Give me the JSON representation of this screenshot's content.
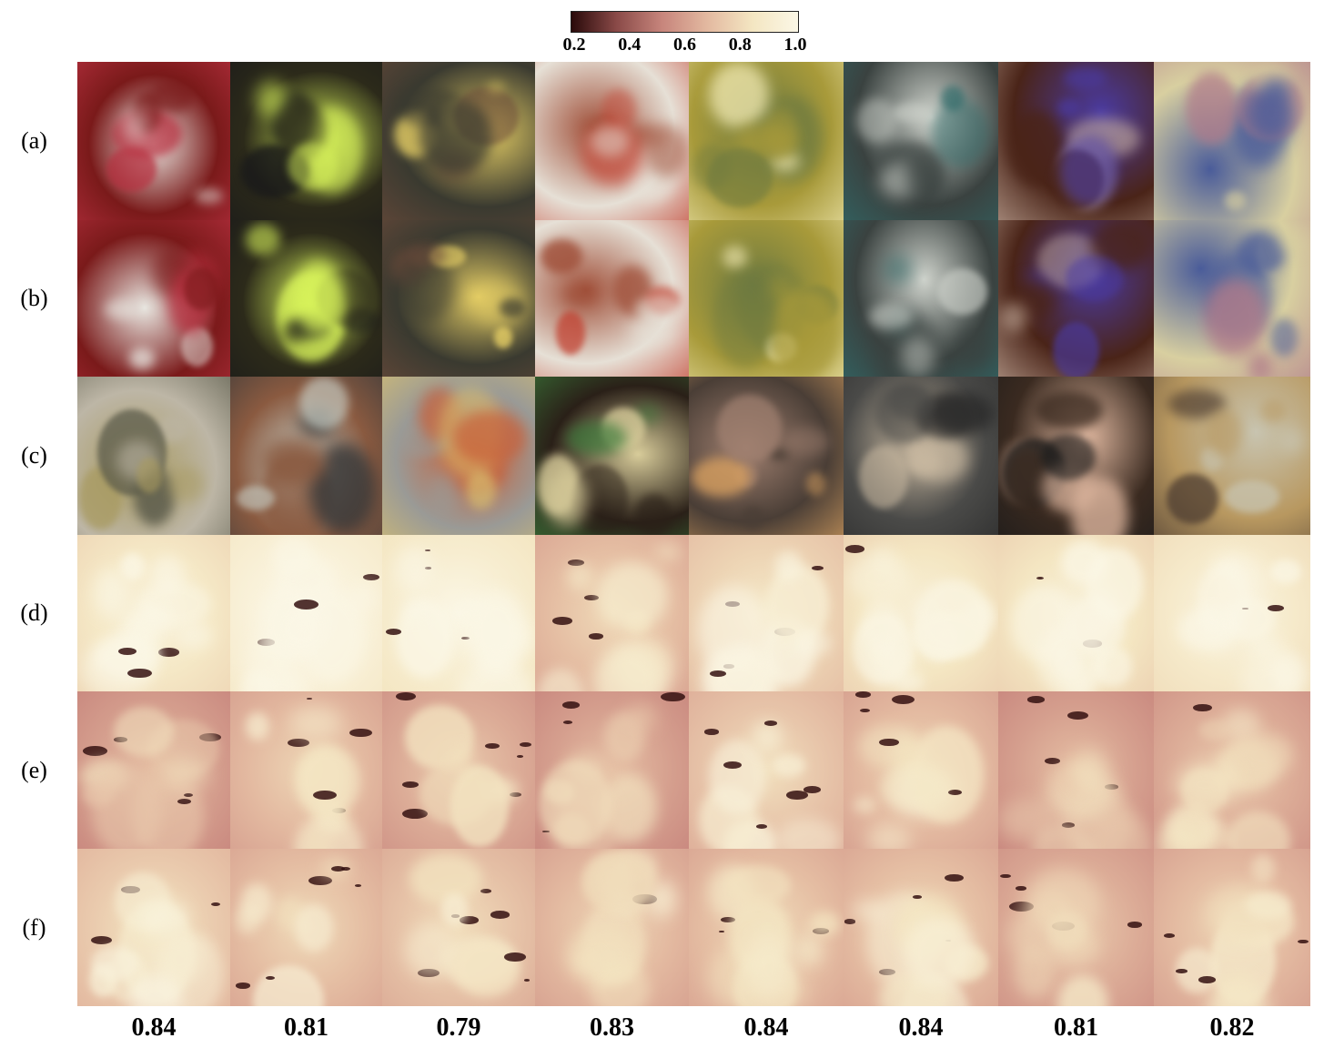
{
  "colorbar": {
    "gradient_colors": [
      "#2a0a0a",
      "#8a4a48",
      "#c7857c",
      "#e3b9a0",
      "#f4e6c2",
      "#fbf7e6"
    ],
    "ticks": [
      "0.2",
      "0.4",
      "0.6",
      "0.8",
      "1.0"
    ]
  },
  "row_labels": [
    "(a)",
    "(b)",
    "(c)",
    "(d)",
    "(e)",
    "(f)"
  ],
  "rows": [
    {
      "label": "(a)",
      "kind": "photo",
      "tiles": [
        {
          "base": "#7a1a1a",
          "accent": "#e8e6e0",
          "detail": "#b83040"
        },
        {
          "base": "#2c2a1a",
          "accent": "#d7f25a",
          "detail": "#1a1a1a"
        },
        {
          "base": "#3a3a30",
          "accent": "#e3cc64",
          "detail": "#6b4a3a"
        },
        {
          "base": "#e6e0d6",
          "accent": "#a0503a",
          "detail": "#c24030"
        },
        {
          "base": "#a89a3a",
          "accent": "#6e7a40",
          "detail": "#f0e8b0"
        },
        {
          "base": "#3a4240",
          "accent": "#cfd3cc",
          "detail": "#2f6b6a"
        },
        {
          "base": "#4a2418",
          "accent": "#4a3aa0",
          "detail": "#c8b0a0"
        },
        {
          "base": "#d8cfa0",
          "accent": "#4a5c9a",
          "detail": "#b07a8a"
        }
      ]
    },
    {
      "label": "(b)",
      "kind": "photo",
      "tiles": [
        {
          "base": "#7a1a1a",
          "accent": "#e8e6e0",
          "detail": "#b83040"
        },
        {
          "base": "#2c2a1a",
          "accent": "#d7f25a",
          "detail": "#1a1a1a"
        },
        {
          "base": "#3a3a30",
          "accent": "#e3cc64",
          "detail": "#6b4a3a"
        },
        {
          "base": "#e6e0d6",
          "accent": "#a0503a",
          "detail": "#c24030"
        },
        {
          "base": "#a89a3a",
          "accent": "#6e7a40",
          "detail": "#f0e8b0"
        },
        {
          "base": "#3a4240",
          "accent": "#cfd3cc",
          "detail": "#2f6b6a"
        },
        {
          "base": "#4a2418",
          "accent": "#4a3aa0",
          "detail": "#c8b0a0"
        },
        {
          "base": "#d8cfa0",
          "accent": "#4a5c9a",
          "detail": "#b07a8a"
        }
      ]
    },
    {
      "label": "(c)",
      "kind": "photo",
      "tiles": [
        {
          "base": "#bdb6a6",
          "accent": "#a89a60",
          "detail": "#5a5a4a"
        },
        {
          "base": "#8a5a40",
          "accent": "#c8d0c8",
          "detail": "#3a3a3a"
        },
        {
          "base": "#9a9a96",
          "accent": "#c8603a",
          "detail": "#d8c070"
        },
        {
          "base": "#2a2018",
          "accent": "#d8cc9a",
          "detail": "#3a7a3a"
        },
        {
          "base": "#4a3e36",
          "accent": "#a08070",
          "detail": "#d8a060"
        },
        {
          "base": "#4a4a48",
          "accent": "#c8b8a0",
          "detail": "#2a2a2a"
        },
        {
          "base": "#3a2a20",
          "accent": "#e0b8a0",
          "detail": "#1a1a1a"
        },
        {
          "base": "#b89860",
          "accent": "#c8c4b0",
          "detail": "#4a3a30"
        }
      ]
    },
    {
      "label": "(d)",
      "kind": "map",
      "tiles": [
        {
          "level": 0.82
        },
        {
          "level": 0.93
        },
        {
          "level": 0.88
        },
        {
          "level": 0.62
        },
        {
          "level": 0.72
        },
        {
          "level": 0.8
        },
        {
          "level": 0.8
        },
        {
          "level": 0.85
        }
      ]
    },
    {
      "label": "(e)",
      "kind": "map",
      "tiles": [
        {
          "level": 0.5
        },
        {
          "level": 0.6
        },
        {
          "level": 0.55
        },
        {
          "level": 0.5
        },
        {
          "level": 0.65
        },
        {
          "level": 0.6
        },
        {
          "level": 0.5
        },
        {
          "level": 0.55
        }
      ]
    },
    {
      "label": "(f)",
      "kind": "map",
      "tiles": [
        {
          "level": 0.68
        },
        {
          "level": 0.62
        },
        {
          "level": 0.64
        },
        {
          "level": 0.6
        },
        {
          "level": 0.62
        },
        {
          "level": 0.62
        },
        {
          "level": 0.55
        },
        {
          "level": 0.6
        }
      ]
    }
  ],
  "scores": [
    "0.84",
    "0.81",
    "0.79",
    "0.83",
    "0.84",
    "0.84",
    "0.81",
    "0.82"
  ]
}
